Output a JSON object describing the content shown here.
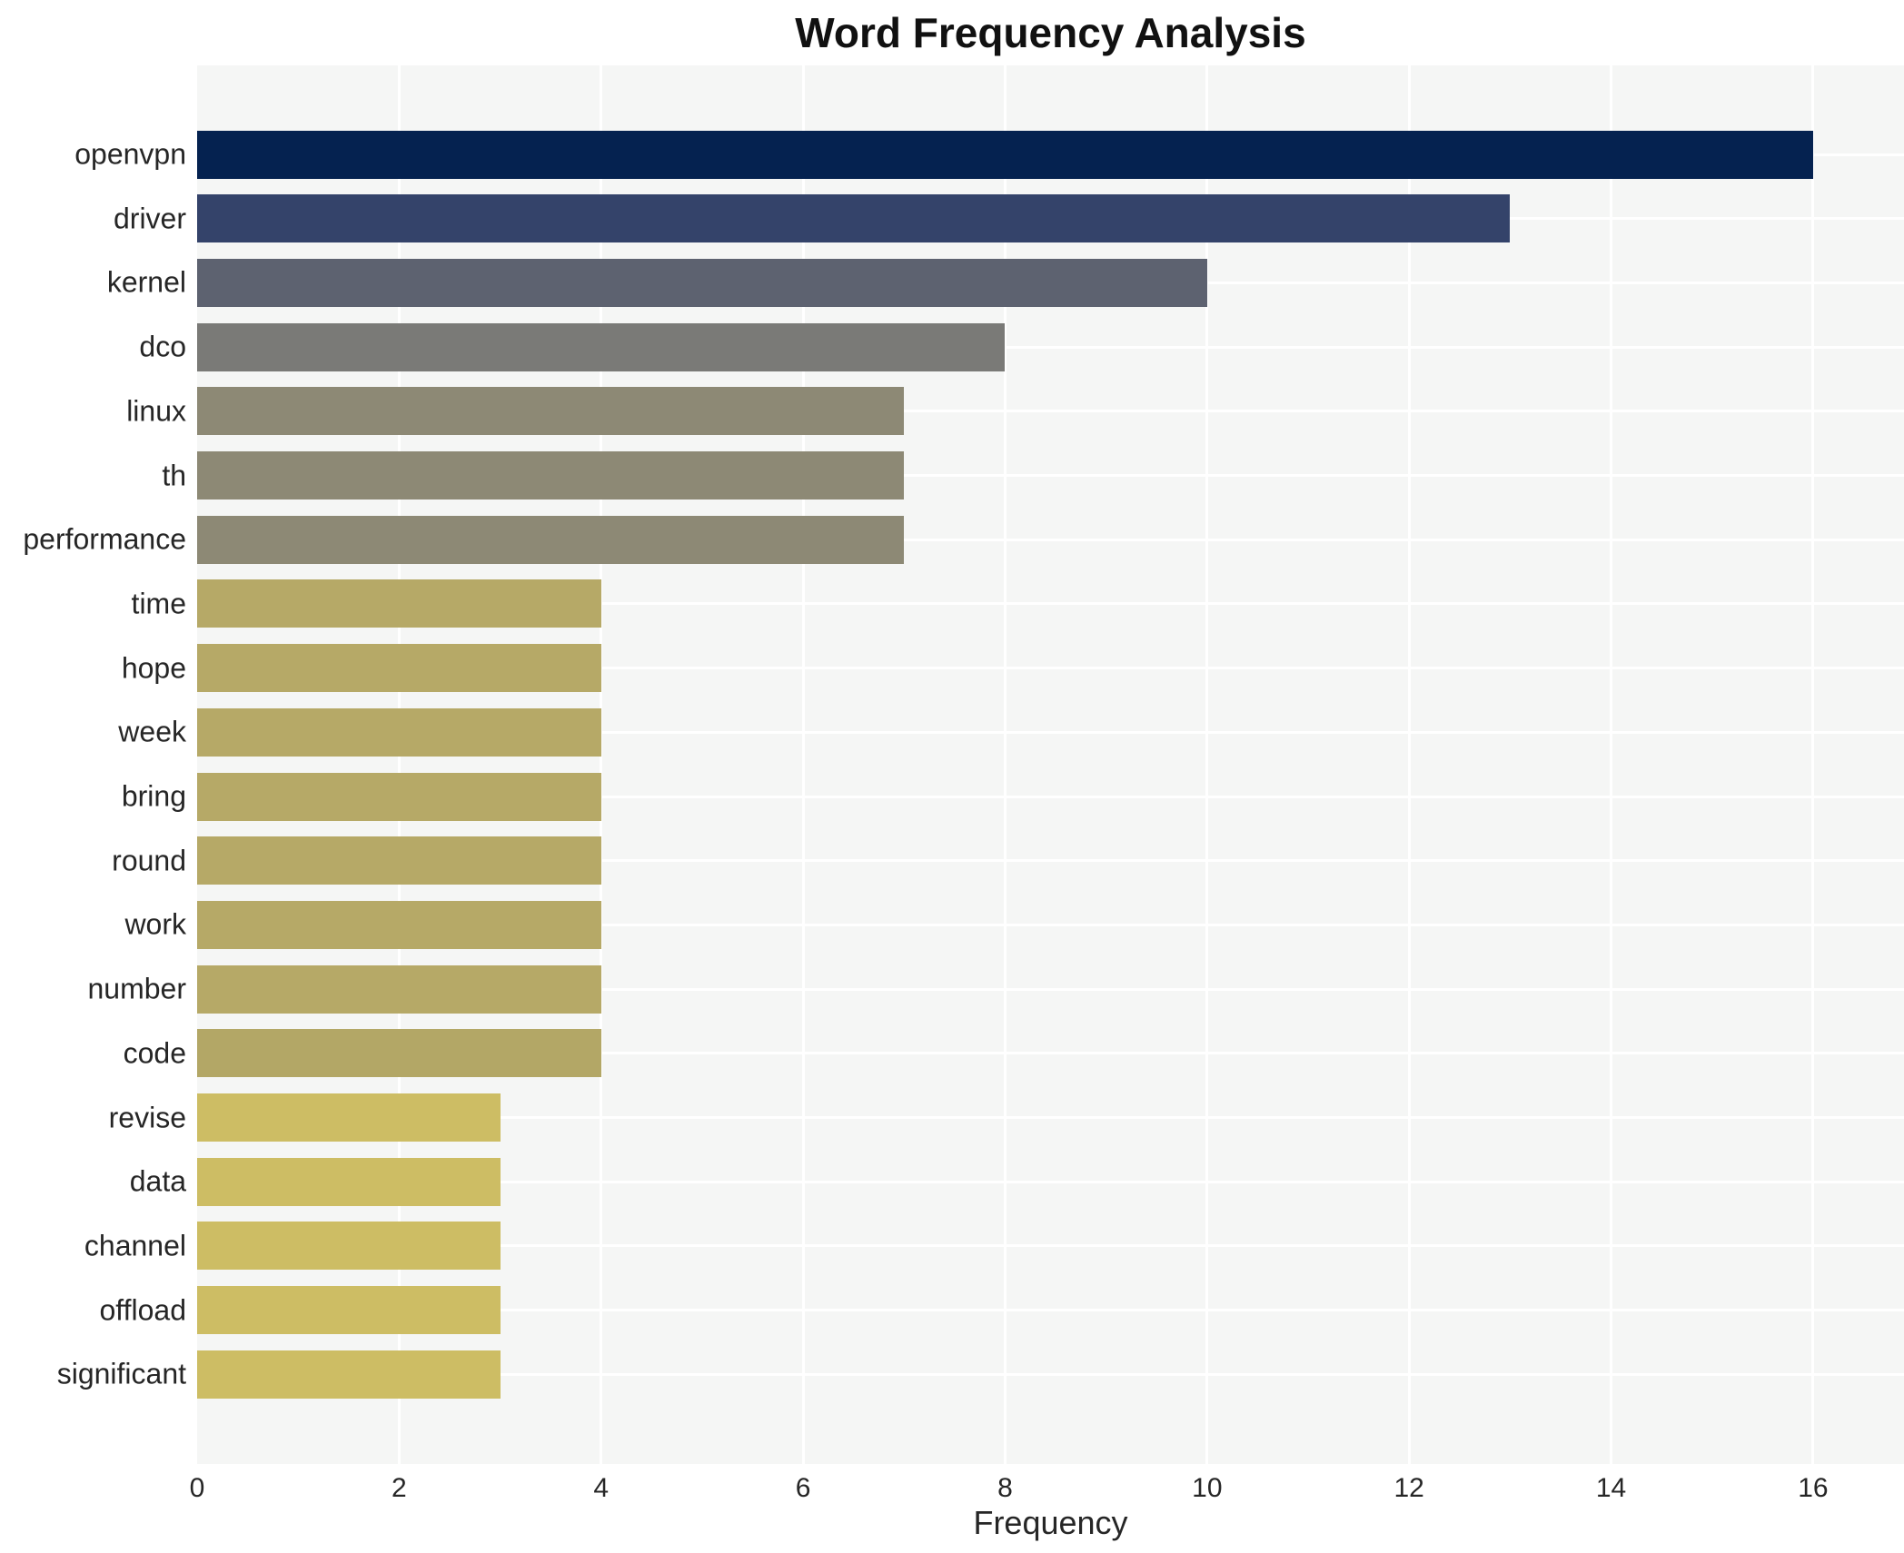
{
  "title": "Word Frequency Analysis",
  "chart_data": {
    "type": "bar",
    "orientation": "horizontal",
    "title": "Word Frequency Analysis",
    "xlabel": "Frequency",
    "ylabel": "",
    "categories": [
      "openvpn",
      "driver",
      "kernel",
      "dco",
      "linux",
      "th",
      "performance",
      "time",
      "hope",
      "week",
      "bring",
      "round",
      "work",
      "number",
      "code",
      "revise",
      "data",
      "channel",
      "offload",
      "significant"
    ],
    "values": [
      16,
      13,
      10,
      8,
      7,
      7,
      7,
      4,
      4,
      4,
      4,
      4,
      4,
      4,
      4,
      3,
      3,
      3,
      3,
      3
    ],
    "bar_colors": [
      "#052250",
      "#34436a",
      "#5d6270",
      "#7a7a77",
      "#8d8975",
      "#8d8975",
      "#8d8975",
      "#b6a967",
      "#b6a967",
      "#b6a967",
      "#b6a967",
      "#b6a967",
      "#b6a967",
      "#b6a967",
      "#b3a766",
      "#cdbd64",
      "#cdbd64",
      "#cdbd64",
      "#cdbd64",
      "#cdbd64"
    ],
    "xlim": [
      0,
      16.9
    ],
    "xticks": [
      0,
      2,
      4,
      6,
      8,
      10,
      12,
      14,
      16
    ],
    "xtick_labels": [
      "0",
      "2",
      "4",
      "6",
      "8",
      "10",
      "12",
      "14",
      "16"
    ],
    "grid": true,
    "legend": false,
    "plot_bg_color": "#f5f6f5",
    "grid_color": "#ffffff",
    "text_color": "#262626",
    "title_color": "#111111"
  }
}
